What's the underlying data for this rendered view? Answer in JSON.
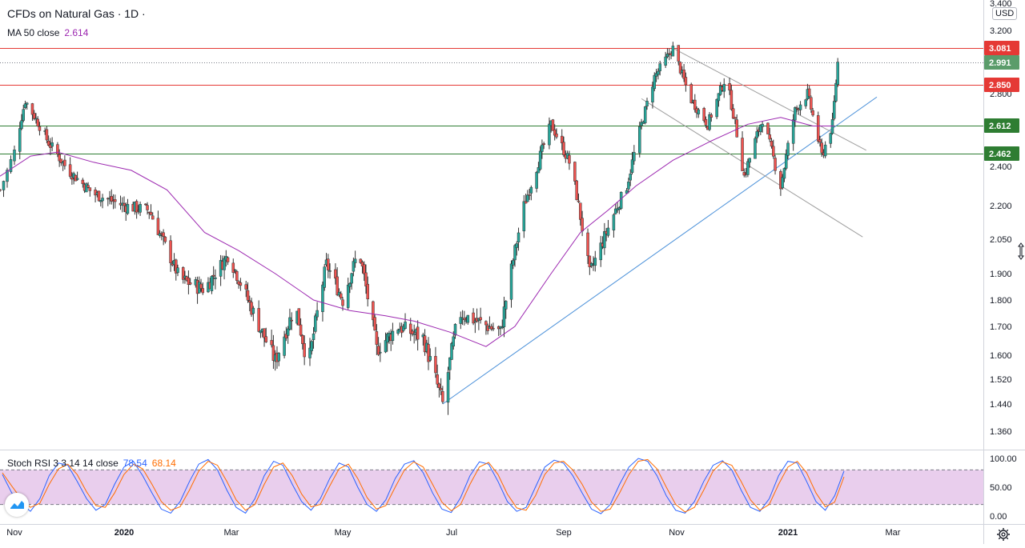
{
  "header": {
    "title": "CFDs on Natural Gas · 1D ·",
    "ma_label": "MA 50 close",
    "ma_value": "2.614"
  },
  "indicator": {
    "label": "Stoch RSI 3 3 14 14 close",
    "k_value": "78.54",
    "d_value": "68.14"
  },
  "currency": "USD",
  "colors": {
    "up": "#26a69a",
    "down": "#ef5350",
    "ma": "#9c27b0",
    "k_line": "#2962ff",
    "d_line": "#ff6d00",
    "red_level": "#e53935",
    "green_level": "#2e7d32",
    "trend": "#4a90d9",
    "channel": "#9e9e9e",
    "rsi_band": "#e1bee7"
  },
  "icons": {
    "logo": "tradingview-logo-icon",
    "settings": "gear-icon",
    "scale_handle": "resize-handle-icon"
  },
  "chart_data": [
    {
      "type": "candlestick",
      "title": "CFDs on Natural Gas · 1D ·",
      "y_axis_ticks": [
        "3.400",
        "3.200",
        "3.081",
        "2.991",
        "2.850",
        "2.800",
        "2.612",
        "2.462",
        "2.400",
        "2.200",
        "2.050",
        "1.900",
        "1.800",
        "1.700",
        "1.600",
        "1.520",
        "1.440",
        "1.360"
      ],
      "x_axis_ticks": [
        "Nov",
        "2020",
        "Mar",
        "May",
        "Jul",
        "Sep",
        "Nov",
        "2021",
        "Mar"
      ],
      "x_range": [
        "2019-10-28",
        "2021-03-20"
      ],
      "price_labels": [
        {
          "value": 3.081,
          "label": "3.081",
          "kind": "level-red"
        },
        {
          "value": 2.991,
          "label": "2.991",
          "kind": "last-price"
        },
        {
          "value": 2.85,
          "label": "2.850",
          "kind": "level-red"
        },
        {
          "value": 2.612,
          "label": "2.612",
          "kind": "level-green"
        },
        {
          "value": 2.462,
          "label": "2.462",
          "kind": "level-green"
        }
      ],
      "horizontal_levels": [
        {
          "value": 3.081,
          "color": "red"
        },
        {
          "value": 2.85,
          "color": "red"
        },
        {
          "value": 2.612,
          "color": "green"
        },
        {
          "value": 2.462,
          "color": "green"
        },
        {
          "value": 2.991,
          "color": "dotted"
        }
      ],
      "ma_series": {
        "name": "MA 50 close",
        "last": 2.614,
        "points": [
          [
            "2019-10-28",
            2.35
          ],
          [
            "2019-11-10",
            2.45
          ],
          [
            "2019-11-25",
            2.47
          ],
          [
            "2019-12-15",
            2.42
          ],
          [
            "2020-01-05",
            2.38
          ],
          [
            "2020-01-25",
            2.28
          ],
          [
            "2020-02-15",
            2.08
          ],
          [
            "2020-03-05",
            2.0
          ],
          [
            "2020-03-25",
            1.9
          ],
          [
            "2020-04-15",
            1.8
          ],
          [
            "2020-05-05",
            1.76
          ],
          [
            "2020-05-25",
            1.74
          ],
          [
            "2020-06-10",
            1.72
          ],
          [
            "2020-06-30",
            1.68
          ],
          [
            "2020-07-20",
            1.63
          ],
          [
            "2020-08-05",
            1.7
          ],
          [
            "2020-08-25",
            1.9
          ],
          [
            "2020-09-10",
            2.08
          ],
          [
            "2020-09-25",
            2.18
          ],
          [
            "2020-10-10",
            2.3
          ],
          [
            "2020-10-30",
            2.43
          ],
          [
            "2020-11-20",
            2.53
          ],
          [
            "2020-12-10",
            2.62
          ],
          [
            "2020-12-28",
            2.66
          ],
          [
            "2021-01-15",
            2.61
          ],
          [
            "2021-01-27",
            2.61
          ]
        ]
      },
      "price_path": [
        [
          "2019-10-28",
          2.28
        ],
        [
          "2019-11-07",
          2.76
        ],
        [
          "2019-11-20",
          2.52
        ],
        [
          "2019-12-01",
          2.38
        ],
        [
          "2019-12-15",
          2.26
        ],
        [
          "2020-01-01",
          2.2
        ],
        [
          "2020-01-15",
          2.18
        ],
        [
          "2020-02-01",
          1.88
        ],
        [
          "2020-02-15",
          1.84
        ],
        [
          "2020-02-28",
          1.98
        ],
        [
          "2020-03-15",
          1.72
        ],
        [
          "2020-03-25",
          1.58
        ],
        [
          "2020-04-05",
          1.78
        ],
        [
          "2020-04-12",
          1.56
        ],
        [
          "2020-04-22",
          1.94
        ],
        [
          "2020-05-01",
          1.8
        ],
        [
          "2020-05-10",
          2.0
        ],
        [
          "2020-05-20",
          1.62
        ],
        [
          "2020-06-01",
          1.7
        ],
        [
          "2020-06-15",
          1.66
        ],
        [
          "2020-06-26",
          1.44
        ],
        [
          "2020-07-05",
          1.75
        ],
        [
          "2020-07-15",
          1.72
        ],
        [
          "2020-07-28",
          1.68
        ],
        [
          "2020-08-10",
          2.2
        ],
        [
          "2020-08-25",
          2.62
        ],
        [
          "2020-09-05",
          2.4
        ],
        [
          "2020-09-15",
          1.9
        ],
        [
          "2020-09-25",
          2.1
        ],
        [
          "2020-10-05",
          2.3
        ],
        [
          "2020-10-20",
          2.9
        ],
        [
          "2020-10-30",
          3.08
        ],
        [
          "2020-11-08",
          2.78
        ],
        [
          "2020-11-18",
          2.62
        ],
        [
          "2020-11-28",
          2.9
        ],
        [
          "2020-12-08",
          2.35
        ],
        [
          "2020-12-18",
          2.65
        ],
        [
          "2020-12-28",
          2.3
        ],
        [
          "2021-01-05",
          2.7
        ],
        [
          "2021-01-12",
          2.8
        ],
        [
          "2021-01-20",
          2.45
        ],
        [
          "2021-01-26",
          2.62
        ],
        [
          "2021-01-29",
          2.99
        ]
      ],
      "trendlines": [
        {
          "kind": "ascending-support",
          "from": [
            "2020-06-26",
            1.44
          ],
          "to": [
            "2021-02-20",
            2.78
          ]
        },
        {
          "kind": "channel-upper",
          "from": [
            "2020-10-30",
            3.08
          ],
          "to": [
            "2021-02-14",
            2.48
          ]
        },
        {
          "kind": "channel-lower",
          "from": [
            "2020-10-13",
            2.77
          ],
          "to": [
            "2021-02-12",
            2.06
          ]
        }
      ]
    },
    {
      "type": "line",
      "title": "Stoch RSI 3 3 14 14 close",
      "y_axis_ticks": [
        "100.00",
        "50.00",
        "0.00"
      ],
      "ylim": [
        0,
        100
      ],
      "band": [
        20,
        80
      ],
      "series": [
        {
          "name": "K",
          "last": 78.54,
          "values": [
            72,
            40,
            22,
            8,
            30,
            70,
            92,
            88,
            60,
            30,
            10,
            20,
            55,
            85,
            95,
            70,
            40,
            12,
            5,
            25,
            60,
            90,
            98,
            80,
            45,
            15,
            5,
            30,
            70,
            95,
            88,
            55,
            25,
            10,
            30,
            65,
            92,
            85,
            50,
            20,
            8,
            28,
            65,
            90,
            96,
            75,
            40,
            12,
            6,
            32,
            70,
            94,
            90,
            60,
            25,
            8,
            15,
            50,
            85,
            97,
            92,
            70,
            40,
            12,
            4,
            20,
            55,
            85,
            100,
            95,
            70,
            35,
            10,
            5,
            25,
            60,
            88,
            96,
            80,
            45,
            15,
            8,
            30,
            70,
            95,
            92,
            60,
            25,
            10,
            35,
            78
          ]
        },
        {
          "name": "D",
          "last": 68.14,
          "values": [
            75,
            52,
            30,
            15,
            22,
            55,
            82,
            90,
            72,
            42,
            18,
            15,
            40,
            72,
            90,
            82,
            55,
            25,
            10,
            16,
            45,
            78,
            95,
            88,
            60,
            28,
            10,
            20,
            55,
            85,
            92,
            70,
            38,
            16,
            20,
            52,
            82,
            90,
            65,
            32,
            12,
            18,
            50,
            80,
            94,
            85,
            55,
            24,
            9,
            20,
            55,
            85,
            93,
            72,
            38,
            14,
            10,
            35,
            72,
            92,
            95,
            80,
            55,
            24,
            8,
            12,
            40,
            72,
            95,
            98,
            82,
            50,
            20,
            7,
            15,
            45,
            78,
            94,
            88,
            60,
            28,
            10,
            20,
            55,
            85,
            95,
            75,
            40,
            16,
            24,
            68
          ]
        }
      ]
    }
  ]
}
